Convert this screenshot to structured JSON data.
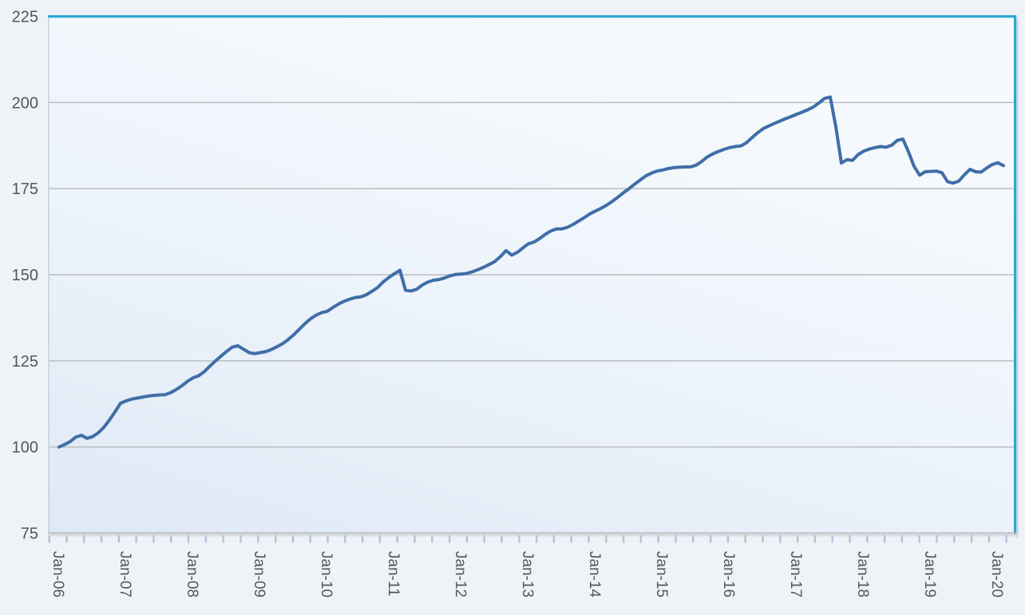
{
  "page": {
    "background_color": "#eff3f7"
  },
  "chart_data": {
    "type": "line",
    "title": "",
    "xlabel": "",
    "ylabel": "",
    "legend_position": "none",
    "grid": "horizontal",
    "x_start": "Jan-06",
    "x_end": "Feb-20",
    "frequency": "monthly",
    "ylim": [
      75,
      225
    ],
    "y_ticks": [
      75,
      100,
      125,
      150,
      175,
      200,
      225
    ],
    "x_tick_labels": [
      "Jan-06",
      "Jan-07",
      "Jan-08",
      "Jan-09",
      "Jan-10",
      "Jan-11",
      "Jan-12",
      "Jan-13",
      "Jan-14",
      "Jan-15",
      "Jan-16",
      "Jan-17",
      "Jan-18",
      "Jan-19",
      "Jan-20"
    ],
    "series": [
      {
        "name": "",
        "color": "#3f6ea7",
        "values": [
          100.0,
          100.7,
          101.6,
          102.9,
          103.4,
          102.5,
          103.0,
          104.1,
          105.7,
          107.8,
          110.2,
          112.7,
          113.4,
          113.9,
          114.2,
          114.5,
          114.8,
          115.0,
          115.1,
          115.2,
          115.8,
          116.7,
          117.8,
          119.1,
          120.1,
          120.7,
          121.9,
          123.5,
          125.0,
          126.4,
          127.8,
          129.0,
          129.4,
          128.4,
          127.4,
          127.1,
          127.4,
          127.7,
          128.3,
          129.1,
          130.0,
          131.2,
          132.6,
          134.2,
          135.8,
          137.2,
          138.3,
          139.0,
          139.4,
          140.5,
          141.5,
          142.3,
          142.9,
          143.4,
          143.6,
          144.2,
          145.2,
          146.3,
          147.9,
          149.2,
          150.3,
          151.3,
          145.5,
          145.3,
          145.8,
          147.0,
          147.9,
          148.4,
          148.6,
          149.1,
          149.7,
          150.1,
          150.2,
          150.4,
          150.9,
          151.5,
          152.2,
          153.0,
          153.9,
          155.3,
          157.0,
          155.7,
          156.5,
          157.8,
          159.0,
          159.5,
          160.5,
          161.7,
          162.7,
          163.3,
          163.3,
          163.8,
          164.6,
          165.6,
          166.6,
          167.7,
          168.5,
          169.3,
          170.2,
          171.3,
          172.5,
          173.8,
          175.0,
          176.3,
          177.5,
          178.7,
          179.5,
          180.1,
          180.4,
          180.8,
          181.1,
          181.2,
          181.3,
          181.3,
          181.8,
          182.9,
          184.2,
          185.1,
          185.8,
          186.4,
          186.9,
          187.2,
          187.4,
          188.3,
          189.8,
          191.2,
          192.4,
          193.2,
          193.9,
          194.6,
          195.3,
          195.9,
          196.6,
          197.2,
          197.9,
          198.7,
          199.9,
          201.2,
          201.6,
          193.0,
          182.4,
          183.4,
          183.2,
          184.9,
          185.9,
          186.5,
          186.9,
          187.2,
          187.0,
          187.6,
          189.0,
          189.4,
          185.7,
          181.5,
          178.9,
          179.9,
          180.0,
          180.1,
          179.6,
          177.0,
          176.6,
          177.2,
          179.0,
          180.6,
          179.9,
          179.8,
          181.0,
          182.0,
          182.5,
          181.7
        ]
      }
    ],
    "styles": {
      "line_color": "#3f6ea7",
      "line_width": 4,
      "plot_border_top_color": "#2aa9d3",
      "plot_border_right_color": "#2aa9d3",
      "plot_border_left_color": "#c9d5e3",
      "axis_line_color": "#b9bcc1",
      "gridline_color": "#babdc2",
      "minor_tick_color": "#b3c3d8",
      "label_color": "#55565a",
      "plot_bg_from": "#dfe9f5",
      "plot_bg_mid": "#eef4fb",
      "plot_bg_to": "#f6fafd",
      "shadow_color": "#d6dade",
      "page_bg": "#eff3f7"
    }
  }
}
